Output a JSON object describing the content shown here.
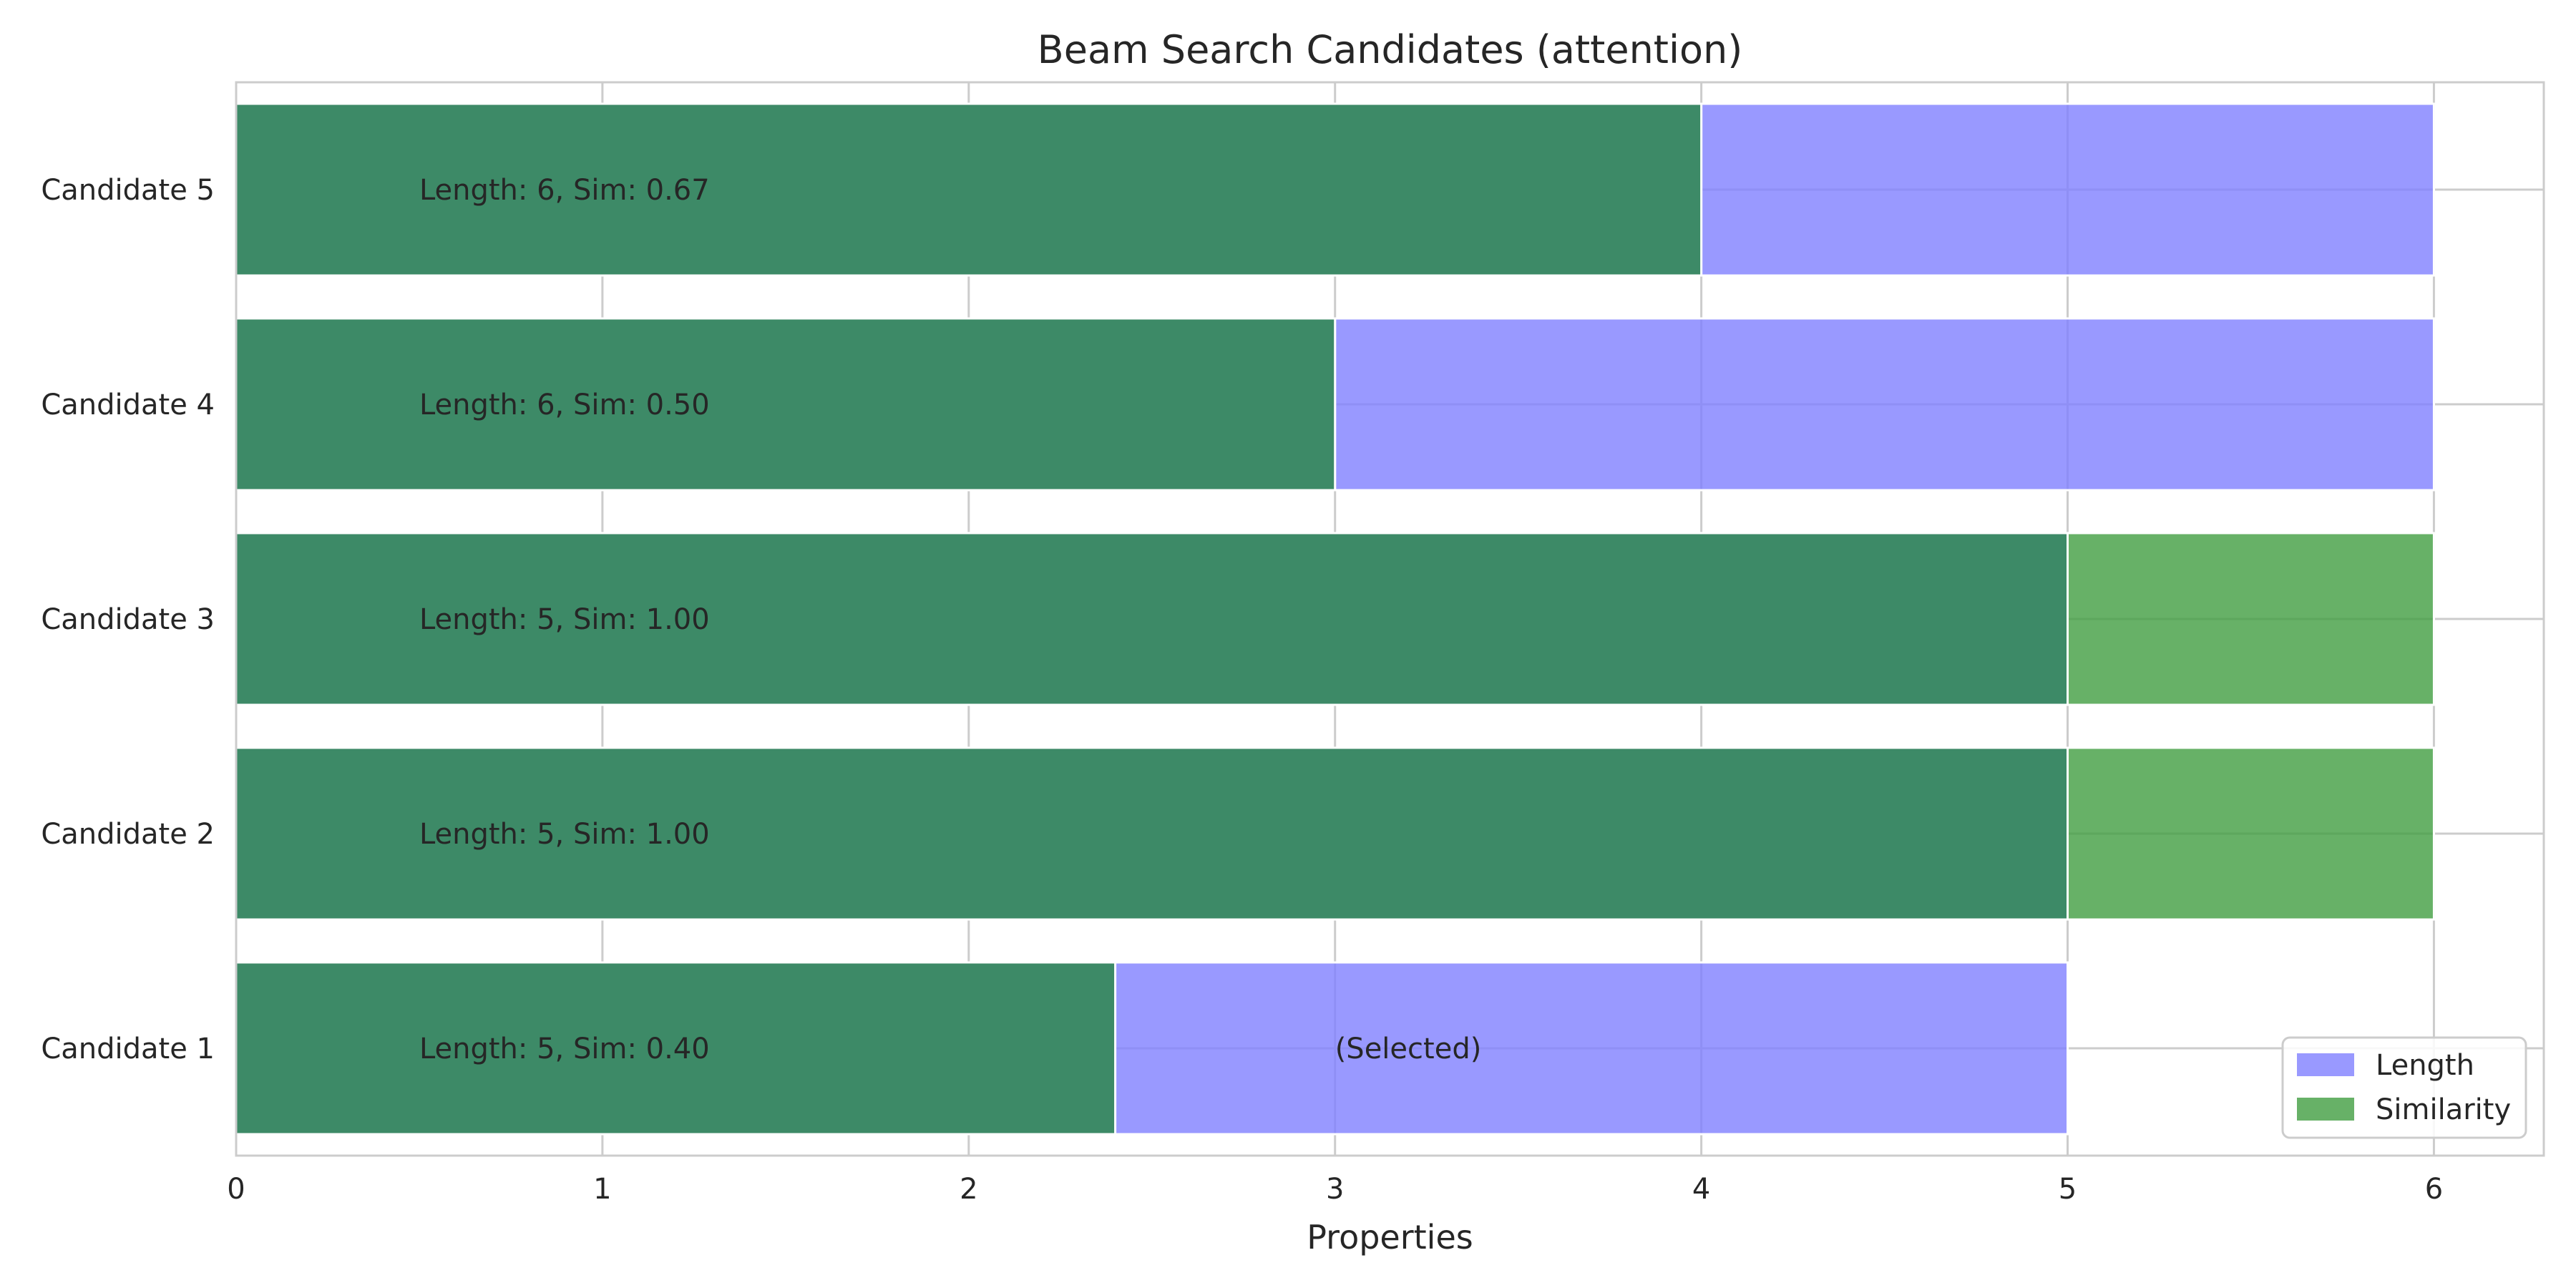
{
  "chart_data": {
    "type": "bar",
    "orientation": "horizontal",
    "title": "Beam Search Candidates (attention)",
    "xlabel": "Properties",
    "ylabel": "",
    "xlim": [
      0,
      6.3
    ],
    "xticks": [
      0,
      1,
      2,
      3,
      4,
      5,
      6
    ],
    "grid": true,
    "legend_position": "bottom-right",
    "categories": [
      "Candidate 1",
      "Candidate 2",
      "Candidate 3",
      "Candidate 4",
      "Candidate 5"
    ],
    "series": [
      {
        "name": "Length",
        "color": "#7f7fff",
        "opacity": 0.8,
        "values": [
          5,
          5,
          5,
          6,
          6
        ]
      },
      {
        "name": "Similarity",
        "color": "#419e41",
        "opacity": 0.8,
        "values": [
          2.4,
          6,
          6,
          3,
          4
        ]
      }
    ],
    "overlap_color": "#3d8a67",
    "bar_labels": [
      "Length: 5, Sim: 0.40",
      "Length: 5, Sim: 1.00",
      "Length: 5, Sim: 1.00",
      "Length: 6, Sim: 0.50",
      "Length: 6, Sim: 0.67"
    ],
    "annotations": [
      {
        "category": "Candidate 1",
        "x": 3,
        "text": "(Selected)"
      }
    ]
  }
}
